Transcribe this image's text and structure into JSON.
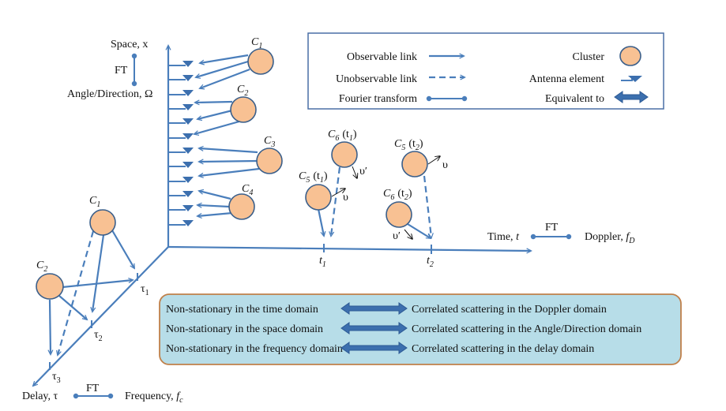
{
  "colors": {
    "link": "#4a7ebb",
    "cluster_fill": "#f8c193",
    "cluster_stroke": "#3b5f8a",
    "box_fill": "#b7dde8",
    "box_border": "#c0804a"
  },
  "legend": {
    "observable_link": "Observable link",
    "unobservable_link": "Unobservable link",
    "fourier_transform": "Fourier transform",
    "cluster": "Cluster",
    "antenna_element": "Antenna element",
    "equivalent_to": "Equivalent to"
  },
  "space_axis": {
    "label": "Space, x",
    "ft": "FT",
    "angle_label": "Angle/Direction, Ω"
  },
  "time_axis": {
    "label": "Time, ",
    "var": "t",
    "ft": "FT",
    "doppler": "Doppler, ",
    "doppler_var": "f",
    "doppler_sub": "D",
    "t1": "t",
    "t1_sub": "1",
    "t2": "t",
    "t2_sub": "2"
  },
  "delay_axis": {
    "label": "Delay, τ",
    "ft": "FT",
    "freq": "Frequency, ",
    "freq_var": "f",
    "freq_sub": "c",
    "tau1": "τ",
    "tau1_sub": "1",
    "tau2": "τ",
    "tau2_sub": "2",
    "tau3": "τ",
    "tau3_sub": "3"
  },
  "space_clusters": [
    {
      "c": "C",
      "sub": "1"
    },
    {
      "c": "C",
      "sub": "2"
    },
    {
      "c": "C",
      "sub": "3"
    },
    {
      "c": "C",
      "sub": "4"
    }
  ],
  "delay_clusters": [
    {
      "c": "C",
      "sub": "1"
    },
    {
      "c": "C",
      "sub": "2"
    }
  ],
  "time_clusters": [
    {
      "c": "C",
      "sub": "6",
      "time": "(t",
      "tsub": "1",
      "close": ")"
    },
    {
      "c": "C",
      "sub": "5",
      "time": "(t",
      "tsub": "1",
      "close": ")"
    },
    {
      "c": "C",
      "sub": "5",
      "time": "(t",
      "tsub": "2",
      "close": ")"
    },
    {
      "c": "C",
      "sub": "6",
      "time": "(t",
      "tsub": "2",
      "close": ")"
    }
  ],
  "velocity": {
    "v": "υ",
    "v_prime": "υ′"
  },
  "equivalences": [
    {
      "left": "Non-stationary in the time domain",
      "right": "Correlated scattering in the Doppler domain"
    },
    {
      "left": "Non-stationary in the space domain",
      "right": "Correlated scattering in the Angle/Direction domain"
    },
    {
      "left": "Non-stationary in the frequency domain",
      "right": "Correlated scattering in the delay domain"
    }
  ]
}
